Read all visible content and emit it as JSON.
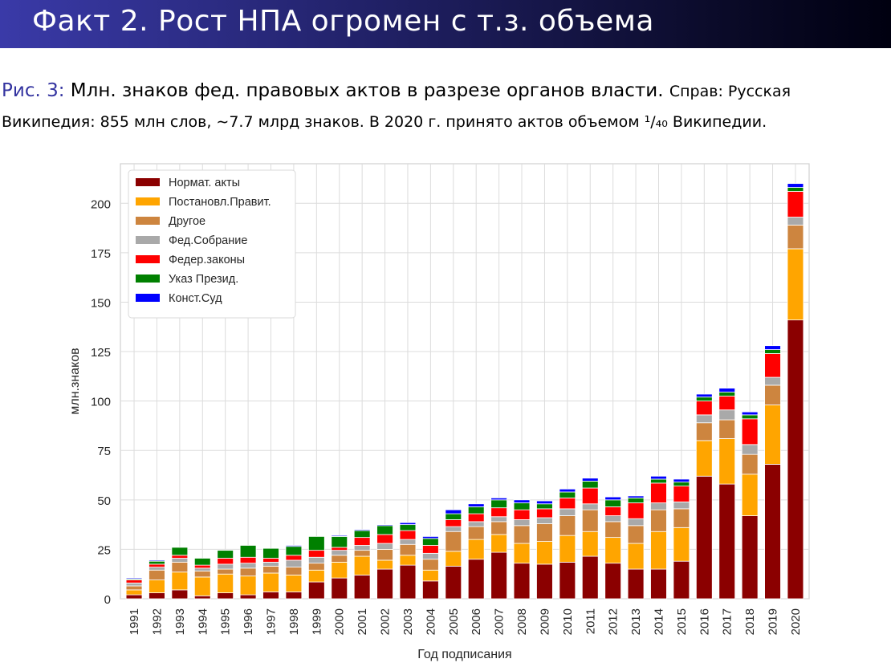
{
  "slide": {
    "title": "Факт 2. Рост НПА огромен с т.з. объема"
  },
  "caption": {
    "fig_label": "Рис. 3:",
    "main_text": "Млн. знаков фед. правовых актов в разрезе органов власти.",
    "note_part1": "Справ: Русская",
    "note_part2": "Википедия: 855 млн слов, ∼7.7 млрд знаков. В 2020 г. принято актов объемом ¹/₄₀ Википедии."
  },
  "chart_data": {
    "type": "bar",
    "stacked": true,
    "xlabel": "Год подписания",
    "ylabel": "млн.знаков",
    "ylim": [
      0,
      220
    ],
    "yticks": [
      0,
      25,
      50,
      75,
      100,
      125,
      150,
      175,
      200
    ],
    "grid": true,
    "legend_position": "top-left",
    "categories": [
      "1991",
      "1992",
      "1993",
      "1994",
      "1995",
      "1996",
      "1997",
      "1998",
      "1999",
      "2000",
      "2001",
      "2002",
      "2003",
      "2004",
      "2005",
      "2006",
      "2007",
      "2008",
      "2009",
      "2010",
      "2011",
      "2012",
      "2013",
      "2014",
      "2015",
      "2016",
      "2017",
      "2018",
      "2019",
      "2020"
    ],
    "series": [
      {
        "name": "Нормат. акты",
        "color": "#8b0000",
        "values": [
          2,
          3,
          4.5,
          1.5,
          3,
          2,
          3.5,
          3.5,
          8.5,
          10.5,
          12,
          15,
          17,
          9,
          16.5,
          20,
          23.5,
          18,
          17.5,
          18.5,
          21.5,
          18,
          15,
          15,
          19,
          62,
          58,
          42,
          68,
          141
        ]
      },
      {
        "name": "Постановл.Правит.",
        "color": "#ffa500",
        "values": [
          2.5,
          6.5,
          9,
          9.5,
          9.5,
          9.5,
          9.5,
          8.5,
          6,
          8,
          9.5,
          4.5,
          5,
          5.5,
          7.5,
          10,
          9,
          10,
          11.5,
          13.5,
          12.5,
          13,
          13,
          19,
          17,
          18,
          23,
          21,
          30,
          36
        ]
      },
      {
        "name": "Другое",
        "color": "#cd853f",
        "values": [
          2,
          5,
          5,
          3,
          2.5,
          4,
          3.5,
          4,
          3.5,
          3.5,
          3,
          5.5,
          5.5,
          5.5,
          10,
          6.5,
          6.5,
          9,
          9,
          10,
          11,
          8,
          9,
          11,
          9.5,
          9,
          9.5,
          10,
          10,
          12
        ]
      },
      {
        "name": "Фед.Собрание",
        "color": "#a9a9a9",
        "values": [
          1.5,
          1.5,
          2,
          1.5,
          2.5,
          2.5,
          2,
          3.5,
          3,
          2.5,
          2.5,
          3,
          2.5,
          3,
          2.5,
          2.5,
          2.5,
          3,
          3,
          3.5,
          3,
          3,
          3.5,
          3.5,
          3.5,
          4,
          5,
          5,
          4,
          4
        ]
      },
      {
        "name": "Федер.законы",
        "color": "#ff0000",
        "values": [
          1.5,
          1.5,
          1.5,
          1.5,
          3,
          3,
          2,
          2.5,
          3.5,
          1.5,
          4,
          4.5,
          4.5,
          4,
          3.5,
          4,
          4.5,
          5,
          4.5,
          5.5,
          8,
          4.5,
          8,
          10,
          8,
          7,
          7,
          13,
          12,
          13
        ]
      },
      {
        "name": "Указ Презид.",
        "color": "#008000",
        "values": [
          0.5,
          1.5,
          4,
          3.5,
          4,
          6,
          5,
          4.5,
          7,
          5.5,
          3.5,
          4.5,
          3,
          3.5,
          3,
          3.5,
          4,
          3.5,
          2.5,
          3,
          3.5,
          3.5,
          2.5,
          2,
          2,
          2,
          2,
          2,
          2,
          2
        ]
      },
      {
        "name": "Конст.Суд",
        "color": "#0000ff",
        "values": [
          0.5,
          0.5,
          0,
          0,
          0,
          0,
          0,
          0.5,
          0,
          0.5,
          0.5,
          0.5,
          1,
          1,
          2,
          1.5,
          1,
          1.5,
          1.5,
          1.5,
          1.5,
          1.5,
          1,
          1.5,
          1.5,
          1.5,
          2,
          1.5,
          2,
          2
        ]
      }
    ]
  }
}
